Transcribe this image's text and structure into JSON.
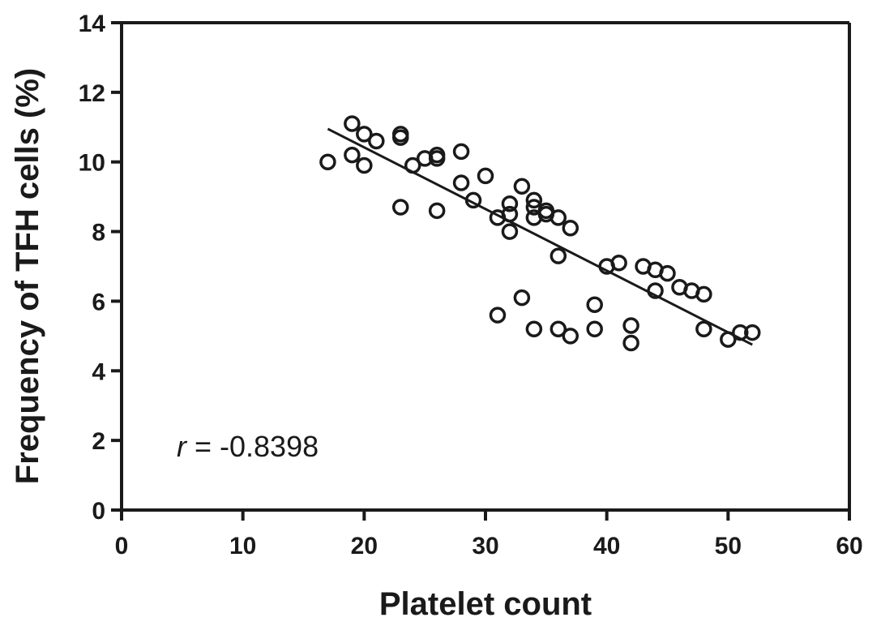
{
  "chart_data": {
    "type": "scatter",
    "xlabel": "Platelet count",
    "ylabel": "Frequency of TFH cells (%)",
    "xlim": [
      0,
      60
    ],
    "ylim": [
      0,
      14
    ],
    "xticks": [
      0,
      10,
      20,
      30,
      40,
      50,
      60
    ],
    "yticks": [
      0,
      2,
      4,
      6,
      8,
      10,
      12,
      14
    ],
    "grid": false,
    "annotation": {
      "symbol": "r",
      "text": " = -0.8398"
    },
    "regression_line": {
      "x": [
        17,
        52
      ],
      "y": [
        10.95,
        4.75
      ]
    },
    "series": [
      {
        "marker": "open-circle",
        "x": [
          17,
          19,
          19,
          20,
          20,
          21,
          23,
          23,
          23,
          24,
          25,
          26,
          26,
          26,
          28,
          28,
          29,
          30,
          31,
          31,
          32,
          32,
          32,
          33,
          33,
          34,
          34,
          34,
          34,
          35,
          35,
          36,
          36,
          36,
          37,
          37,
          39,
          39,
          40,
          41,
          42,
          42,
          43,
          44,
          44,
          45,
          46,
          47,
          48,
          48,
          50,
          51,
          52
        ],
        "y": [
          10.0,
          11.1,
          10.2,
          10.8,
          9.9,
          10.6,
          10.8,
          10.7,
          8.7,
          9.9,
          10.1,
          10.2,
          10.1,
          8.6,
          10.3,
          9.4,
          8.9,
          9.6,
          8.4,
          5.6,
          8.8,
          8.5,
          8.0,
          9.3,
          6.1,
          8.9,
          8.7,
          8.4,
          5.2,
          8.6,
          8.5,
          8.4,
          7.3,
          5.2,
          8.1,
          5.0,
          5.9,
          5.2,
          7.0,
          7.1,
          5.3,
          4.8,
          7.0,
          6.9,
          6.3,
          6.8,
          6.4,
          6.3,
          6.2,
          5.2,
          4.9,
          5.1,
          5.1
        ]
      }
    ]
  }
}
